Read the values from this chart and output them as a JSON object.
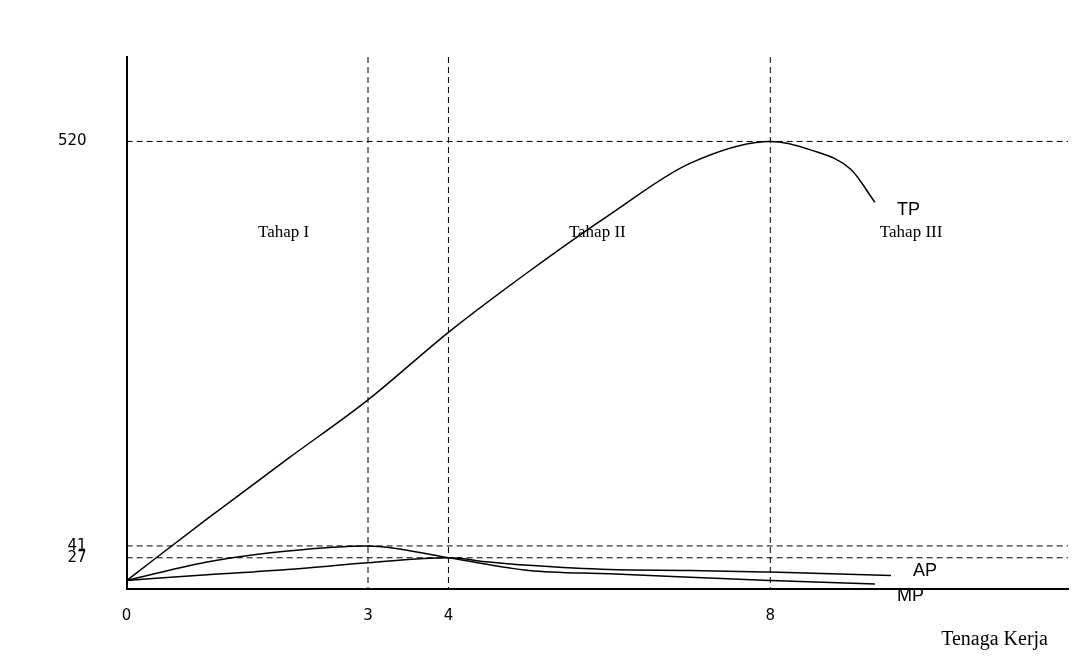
{
  "chart_data": {
    "type": "line",
    "xlabel": "Tenaga Kerja",
    "xlim": [
      0,
      11.7
    ],
    "xticks": [
      0,
      3,
      4,
      8
    ],
    "ylim": [
      -10,
      620
    ],
    "yticks": [
      27,
      41,
      520
    ],
    "grid": false,
    "legend": false,
    "marker": "none",
    "line_style": "solid",
    "series": [
      {
        "name": "TP",
        "color": "#000000",
        "x": [
          0,
          1,
          2,
          3,
          4,
          5,
          6,
          7,
          8,
          8.5,
          9,
          9.3
        ],
        "values": [
          0,
          73,
          144,
          214,
          294,
          366,
          433,
          494,
          520,
          510,
          487,
          448
        ]
      },
      {
        "name": "AP",
        "color": "#000000",
        "x": [
          0,
          1,
          2,
          3,
          4,
          4.5,
          5,
          6,
          7,
          8,
          9.5
        ],
        "values": [
          0,
          7,
          13,
          21,
          27,
          22,
          18,
          13,
          12,
          10,
          6
        ]
      },
      {
        "name": "MP",
        "color": "#000000",
        "x": [
          0,
          1,
          2,
          3,
          4,
          5,
          6,
          7,
          8,
          9.3
        ],
        "values": [
          0,
          22,
          35,
          41,
          27,
          12,
          8,
          4,
          0,
          -4
        ]
      }
    ],
    "ref_lines": [
      {
        "axis": "x",
        "value": 3,
        "line_style": "dashed",
        "color": "#000000"
      },
      {
        "axis": "x",
        "value": 4,
        "line_style": "dashed",
        "color": "#000000"
      },
      {
        "axis": "x",
        "value": 8,
        "line_style": "dashed",
        "color": "#000000"
      },
      {
        "axis": "y",
        "value": 520,
        "line_style": "dashed",
        "color": "#000000"
      },
      {
        "axis": "y",
        "value": 41,
        "line_style": "dashed",
        "color": "#000000"
      },
      {
        "axis": "y",
        "value": 27,
        "line_style": "dashed",
        "color": "#000000"
      }
    ],
    "annotations": [
      "Tahap I",
      "Tahap II",
      "Tahap III"
    ]
  }
}
